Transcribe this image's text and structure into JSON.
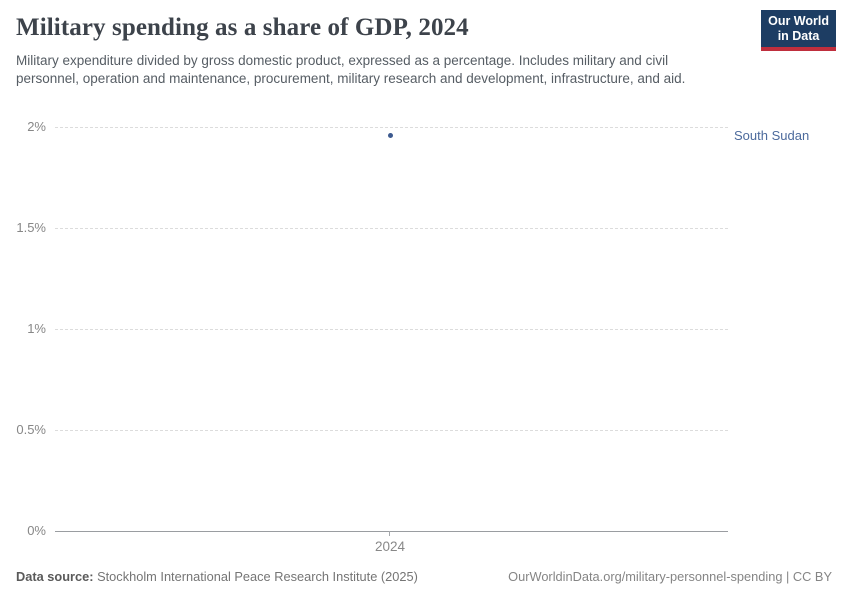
{
  "header": {
    "title": "Military spending as a share of GDP, 2024",
    "subtitle": "Military expenditure divided by gross domestic product, expressed as a percentage. Includes military and civil personnel, operation and maintenance, procurement, military research and development, infrastructure, and aid."
  },
  "logo": {
    "line1": "Our World",
    "line2": "in Data",
    "background_color": "#1d3d63",
    "bar_color": "#bf2e3d"
  },
  "chart_data": {
    "type": "scatter",
    "title": "Military spending as a share of GDP, 2024",
    "series": [
      {
        "name": "South Sudan",
        "x": [
          2024
        ],
        "values": [
          1.96
        ]
      }
    ],
    "entity_label": "South Sudan",
    "xlabel": "",
    "ylabel": "",
    "ylim": [
      0,
      2
    ],
    "x_ticks": [
      "2024"
    ],
    "y_ticks": [
      {
        "label": "2%",
        "value": 2
      },
      {
        "label": "1.5%",
        "value": 1.5
      },
      {
        "label": "1%",
        "value": 1
      },
      {
        "label": "0.5%",
        "value": 0.5
      },
      {
        "label": "0%",
        "value": 0
      }
    ],
    "grid": "horizontal-dashed",
    "legend_position": "right-entity-label",
    "point_color": "#3d5a8f",
    "label_color": "#4c6a9c"
  },
  "footer": {
    "datasource_label": "Data source:",
    "datasource_value": " Stockholm International Peace Research Institute (2025)",
    "credit": "OurWorldinData.org/military-personnel-spending | CC BY"
  }
}
